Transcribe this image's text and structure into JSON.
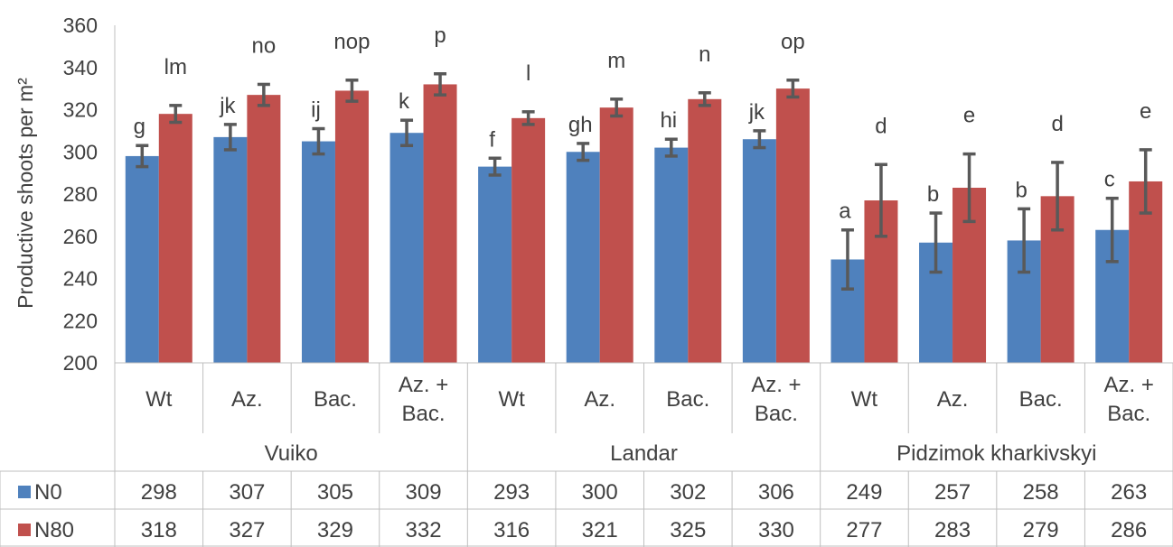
{
  "chart_data": {
    "type": "bar",
    "ylabel": "Productive shoots per m²",
    "ylim": [
      200,
      360
    ],
    "yticks": [
      200,
      220,
      240,
      260,
      280,
      300,
      320,
      340,
      360
    ],
    "grid": false,
    "groups": [
      {
        "name": "Vuiko",
        "categories": [
          "Wt",
          "Az.",
          "Bac.",
          "Az. + Bac."
        ]
      },
      {
        "name": "Landar",
        "categories": [
          "Wt",
          "Az.",
          "Bac.",
          "Az. + Bac."
        ]
      },
      {
        "name": "Pidzimok kharkivskyi",
        "categories": [
          "Wt",
          "Az.",
          "Bac.",
          "Az. + Bac."
        ]
      }
    ],
    "series": [
      {
        "name": "N0",
        "color": "#4f81bd",
        "values": [
          298,
          307,
          305,
          309,
          293,
          300,
          302,
          306,
          249,
          257,
          258,
          263
        ],
        "error": [
          5,
          6,
          6,
          6,
          4,
          4,
          4,
          4,
          14,
          14,
          15,
          15
        ],
        "letters": [
          "g",
          "jk",
          "ij",
          "k",
          "f",
          "gh",
          "hi",
          "jk",
          "a",
          "b",
          "b",
          "c"
        ]
      },
      {
        "name": "N80",
        "color": "#c0504d",
        "values": [
          318,
          327,
          329,
          332,
          316,
          321,
          325,
          330,
          277,
          283,
          279,
          286
        ],
        "error": [
          4,
          5,
          5,
          5,
          3,
          4,
          3,
          4,
          17,
          16,
          16,
          15
        ],
        "letters": [
          "lm",
          "no",
          "nop",
          "p",
          "l",
          "m",
          "n",
          "op",
          "d",
          "e",
          "d",
          "e"
        ]
      }
    ],
    "data_table": true
  }
}
